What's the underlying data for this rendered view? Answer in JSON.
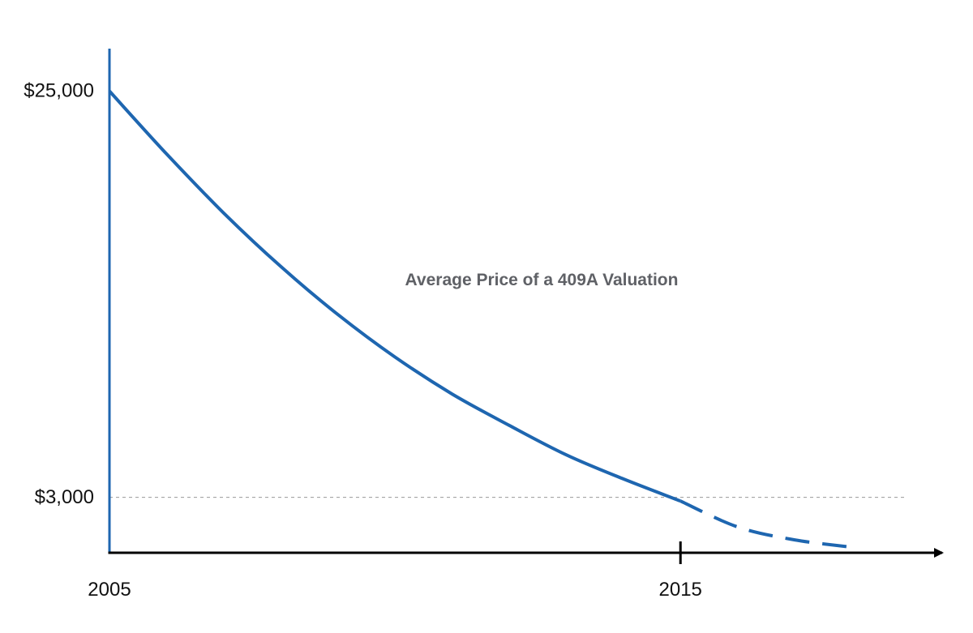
{
  "chart_data": {
    "type": "line",
    "title": "",
    "xlabel": "",
    "ylabel": "",
    "x_ticks": [
      "2005",
      "2015"
    ],
    "y_ticks": [
      {
        "value": 25000,
        "label": "$25,000"
      },
      {
        "value": 3000,
        "label": "$3,000"
      }
    ],
    "reference_line": {
      "value": 3000,
      "style": "dashed",
      "color": "#999999"
    },
    "annotations": [
      {
        "text": "Average Price of a 409A Valuation",
        "x": 2010,
        "y": 13000
      }
    ],
    "series": [
      {
        "color": "#1e66b0",
        "style": "solid",
        "points": [
          {
            "x": 2005,
            "y": 25000
          },
          {
            "x": 2006,
            "y": 21600
          },
          {
            "x": 2007,
            "y": 18400
          },
          {
            "x": 2008,
            "y": 15500
          },
          {
            "x": 2009,
            "y": 12900
          },
          {
            "x": 2010,
            "y": 10600
          },
          {
            "x": 2011,
            "y": 8600
          },
          {
            "x": 2012,
            "y": 6900
          },
          {
            "x": 2013,
            "y": 5300
          },
          {
            "x": 2014,
            "y": 4000
          },
          {
            "x": 2015,
            "y": 2800
          }
        ]
      },
      {
        "color": "#1e66b0",
        "style": "dashed",
        "points": [
          {
            "x": 2015,
            "y": 2800
          },
          {
            "x": 2016,
            "y": 1400
          },
          {
            "x": 2017,
            "y": 700
          },
          {
            "x": 2018,
            "y": 300
          }
        ]
      }
    ],
    "xlim": [
      2005,
      2019.2
    ],
    "ylim": [
      0,
      27300
    ],
    "grid": false,
    "legend": "none"
  }
}
